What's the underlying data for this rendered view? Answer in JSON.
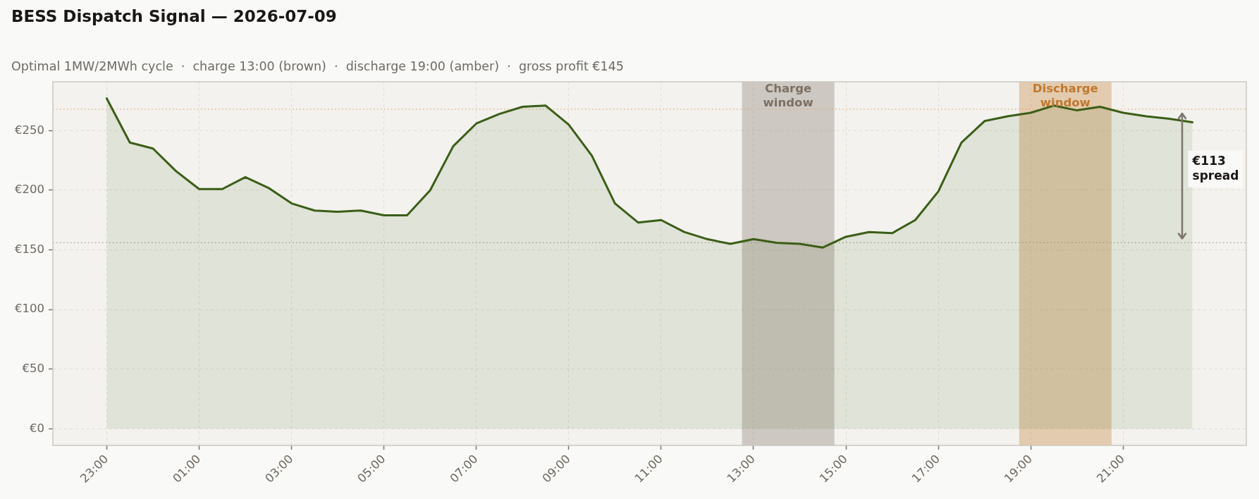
{
  "chart_data": {
    "type": "area",
    "title": "BESS Dispatch Signal — 2026-07-09",
    "subtitle": "Optimal 1MW/2MWh cycle  ·  charge 13:00 (brown)  ·  discharge 19:00 (amber)  ·  gross profit €145",
    "x": [
      "2026-07-08T23:00",
      "2026-07-08T23:30",
      "2026-07-09T00:00",
      "2026-07-09T00:30",
      "2026-07-09T01:00",
      "2026-07-09T01:30",
      "2026-07-09T02:00",
      "2026-07-09T02:30",
      "2026-07-09T03:00",
      "2026-07-09T03:30",
      "2026-07-09T04:00",
      "2026-07-09T04:30",
      "2026-07-09T05:00",
      "2026-07-09T05:30",
      "2026-07-09T06:00",
      "2026-07-09T06:30",
      "2026-07-09T07:00",
      "2026-07-09T07:30",
      "2026-07-09T08:00",
      "2026-07-09T08:30",
      "2026-07-09T09:00",
      "2026-07-09T09:30",
      "2026-07-09T10:00",
      "2026-07-09T10:30",
      "2026-07-09T11:00",
      "2026-07-09T11:30",
      "2026-07-09T12:00",
      "2026-07-09T12:30",
      "2026-07-09T13:00",
      "2026-07-09T13:30",
      "2026-07-09T14:00",
      "2026-07-09T14:30",
      "2026-07-09T15:00",
      "2026-07-09T15:30",
      "2026-07-09T16:00",
      "2026-07-09T16:30",
      "2026-07-09T17:00",
      "2026-07-09T17:30",
      "2026-07-09T18:00",
      "2026-07-09T18:30",
      "2026-07-09T19:00",
      "2026-07-09T19:30",
      "2026-07-09T20:00",
      "2026-07-09T20:30",
      "2026-07-09T21:00",
      "2026-07-09T21:30",
      "2026-07-09T22:00",
      "2026-07-09T22:30"
    ],
    "series": [
      {
        "color": "#3b5e17",
        "values": [
          277,
          240,
          235,
          216,
          201,
          201,
          211,
          202,
          189,
          183,
          182,
          183,
          179,
          179,
          200,
          237,
          256,
          264,
          270,
          271,
          255,
          229,
          189,
          173,
          175,
          165,
          159,
          155,
          159,
          156,
          155,
          152,
          161,
          165,
          164,
          175,
          199,
          240,
          258,
          262,
          265,
          271,
          267,
          270,
          265,
          262,
          260,
          257
        ]
      }
    ],
    "xlim": [
      "2026-07-08T21:50",
      "2026-07-09T23:40"
    ],
    "xticks": [
      {
        "value": "2026-07-08T23:00",
        "label": "23:00"
      },
      {
        "value": "2026-07-09T01:00",
        "label": "01:00"
      },
      {
        "value": "2026-07-09T03:00",
        "label": "03:00"
      },
      {
        "value": "2026-07-09T05:00",
        "label": "05:00"
      },
      {
        "value": "2026-07-09T07:00",
        "label": "07:00"
      },
      {
        "value": "2026-07-09T09:00",
        "label": "09:00"
      },
      {
        "value": "2026-07-09T11:00",
        "label": "11:00"
      },
      {
        "value": "2026-07-09T13:00",
        "label": "13:00"
      },
      {
        "value": "2026-07-09T15:00",
        "label": "15:00"
      },
      {
        "value": "2026-07-09T17:00",
        "label": "17:00"
      },
      {
        "value": "2026-07-09T19:00",
        "label": "19:00"
      },
      {
        "value": "2026-07-09T21:00",
        "label": "21:00"
      }
    ],
    "ylim": [
      -14,
      291
    ],
    "yticks": [
      {
        "value": 0,
        "label": "€0"
      },
      {
        "value": 50,
        "label": "€50"
      },
      {
        "value": 100,
        "label": "€100"
      },
      {
        "value": 150,
        "label": "€150"
      },
      {
        "value": 200,
        "label": "€200"
      },
      {
        "value": 250,
        "label": "€250"
      }
    ],
    "grid": true,
    "ref_lines": [
      {
        "axis": "y",
        "value": 268,
        "color": "#e0a878",
        "line_style": "dotted"
      },
      {
        "axis": "y",
        "value": 156,
        "color": "#a39a90",
        "line_style": "dotted"
      }
    ],
    "bands": [
      {
        "axis": "x",
        "from": "2026-07-09T12:45",
        "to": "2026-07-09T14:45",
        "label": "Charge\nwindow",
        "color": "#7c7064"
      },
      {
        "axis": "x",
        "from": "2026-07-09T18:45",
        "to": "2026-07-09T20:45",
        "label": "Discharge\nwindow",
        "color": "#c0782c"
      }
    ],
    "annotations": [
      "€113\nspread"
    ]
  }
}
